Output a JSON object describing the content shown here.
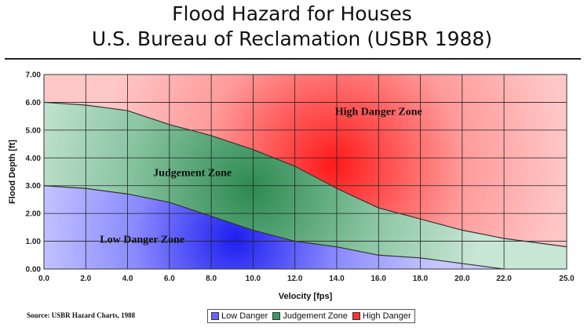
{
  "title_lines": [
    "Flood Hazard for Houses",
    "U.S. Bureau of Reclamation (USBR 1988)"
  ],
  "source_note": "Source: USBR Hazard Charts, 1988",
  "chart_data": {
    "type": "area",
    "title": "Flood Hazard for Houses U.S. Bureau of Reclamation (USBR 1988)",
    "xlabel": "Velocity [fps]",
    "ylabel": "Flood Depth [ft]",
    "xlim": [
      0,
      25
    ],
    "ylim": [
      0,
      7
    ],
    "x_ticks": [
      0,
      2,
      4,
      6,
      8,
      10,
      12,
      14,
      16,
      18,
      20,
      22,
      25
    ],
    "x_tick_labels": [
      "0.0",
      "2.0",
      "4.0",
      "6.0",
      "8.0",
      "10.0",
      "12.0",
      "14.0",
      "16.0",
      "18.0",
      "20.0",
      "22.0",
      "25.0"
    ],
    "y_ticks": [
      0,
      1,
      2,
      3,
      4,
      5,
      6,
      7
    ],
    "y_tick_labels": [
      "0.00",
      "1.00",
      "2.00",
      "3.00",
      "4.00",
      "5.00",
      "6.00",
      "7.00"
    ],
    "grid": true,
    "legend_position": "bottom-center",
    "x": [
      0,
      2,
      4,
      6,
      8,
      10,
      12,
      14,
      16,
      18,
      20,
      22,
      25
    ],
    "series": [
      {
        "name": "Low Danger",
        "values": [
          3.0,
          2.9,
          2.7,
          2.4,
          1.9,
          1.4,
          1.0,
          0.8,
          0.5,
          0.4,
          0.2,
          0.0,
          null
        ],
        "color": "#6666ff"
      },
      {
        "name": "Judgement Zone",
        "values": [
          6.0,
          5.9,
          5.7,
          5.2,
          4.8,
          4.3,
          3.7,
          2.9,
          2.2,
          1.8,
          1.4,
          1.1,
          0.8
        ],
        "color": "#3a9a60"
      },
      {
        "name": "High Danger",
        "values": [
          7,
          7,
          7,
          7,
          7,
          7,
          7,
          7,
          7,
          7,
          7,
          7,
          7
        ],
        "color": "#ff3333"
      }
    ],
    "annotations": [
      {
        "text": "High Danger Zone",
        "x": 16.0,
        "y": 5.55
      },
      {
        "text": "Judgement Zone",
        "x": 7.1,
        "y": 3.35
      },
      {
        "text": "Low Danger Zone",
        "x": 4.7,
        "y": 0.95
      }
    ],
    "colors": {
      "high_light": "#ffc8c8",
      "high_strong": "#ff1a1a",
      "judgement_light": "#c8e6d4",
      "judgement_strong": "#2d8a50",
      "low_light": "#c8c8ff",
      "low_strong": "#1e1ef0"
    }
  }
}
